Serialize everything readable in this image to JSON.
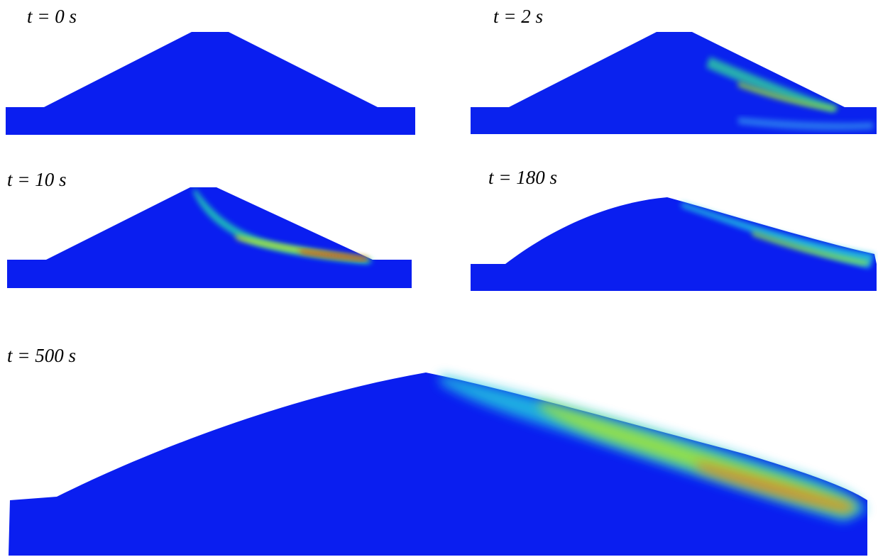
{
  "panels": [
    {
      "label": "t = 0 s"
    },
    {
      "label": "t = 2 s"
    },
    {
      "label": "t = 10 s"
    },
    {
      "label": "t = 180 s"
    },
    {
      "label": "t = 500 s"
    }
  ]
}
